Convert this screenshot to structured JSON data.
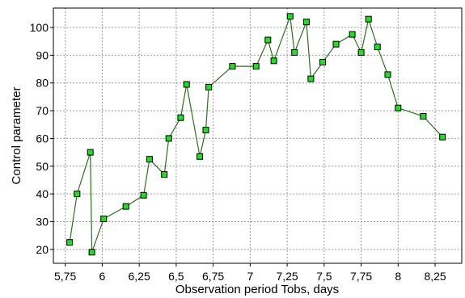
{
  "chart_data": {
    "type": "line",
    "xlabel": "Observation period Tobs, days",
    "ylabel": "Control parameter",
    "xlim": [
      5.67,
      8.43
    ],
    "ylim": [
      15,
      107
    ],
    "x_ticks": [
      5.75,
      6,
      6.25,
      6.5,
      6.75,
      7,
      7.25,
      7.5,
      7.75,
      8,
      8.25
    ],
    "x_tick_labels": [
      "5,75",
      "6",
      "6,25",
      "6,5",
      "6,75",
      "7",
      "7,25",
      "7,5",
      "7,75",
      "8",
      "8,25"
    ],
    "y_ticks": [
      20,
      30,
      40,
      50,
      60,
      70,
      80,
      90,
      100
    ],
    "y_tick_labels": [
      "20",
      "30",
      "40",
      "50",
      "60",
      "70",
      "80",
      "90",
      "100"
    ],
    "grid": true,
    "colors": {
      "line": "#2f6e1e",
      "marker_fill": "#22dd22",
      "marker_edge": "#000000",
      "grid": "#9a9a9a"
    },
    "series": [
      {
        "x": [
          5.78,
          5.83,
          5.92,
          5.93,
          6.01,
          6.16,
          6.28,
          6.32,
          6.42,
          6.45,
          6.53,
          6.57,
          6.66,
          6.7,
          6.72,
          6.88,
          7.04,
          7.12,
          7.16,
          7.27,
          7.3,
          7.38,
          7.41,
          7.49,
          7.58,
          7.69,
          7.75,
          7.8,
          7.86,
          7.93,
          8.0,
          8.17,
          8.3
        ],
        "y": [
          22.5,
          40,
          55,
          19,
          31,
          35.5,
          39.5,
          52.5,
          47,
          60,
          67.5,
          79.5,
          53.5,
          63,
          78.5,
          86,
          86,
          95.5,
          88,
          104,
          91,
          102,
          81.5,
          87.5,
          94,
          97.5,
          91,
          103,
          93,
          83,
          71,
          68,
          60.5
        ]
      }
    ]
  }
}
